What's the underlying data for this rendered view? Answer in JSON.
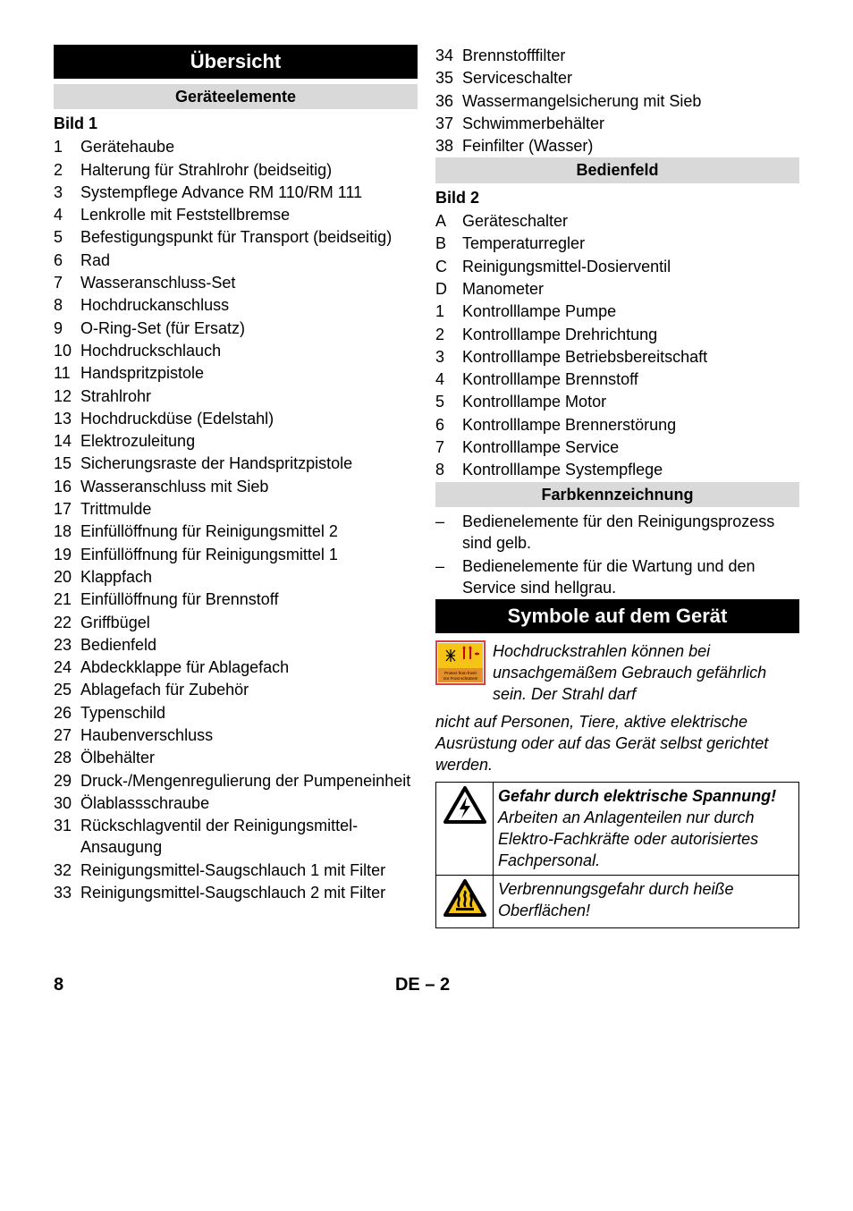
{
  "left": {
    "overview_title": "Übersicht",
    "elements_title": "Geräteelemente",
    "bild_label": "Bild 1",
    "items": [
      {
        "n": "1",
        "t": "Gerätehaube"
      },
      {
        "n": "2",
        "t": "Halterung für Strahlrohr (beidseitig)"
      },
      {
        "n": "3",
        "t": "Systempflege Advance RM 110/RM 111"
      },
      {
        "n": "4",
        "t": "Lenkrolle mit Feststellbremse"
      },
      {
        "n": "5",
        "t": "Befestigungspunkt für Transport (beidseitig)"
      },
      {
        "n": "6",
        "t": "Rad"
      },
      {
        "n": "7",
        "t": "Wasseranschluss-Set"
      },
      {
        "n": "8",
        "t": "Hochdruckanschluss"
      },
      {
        "n": "9",
        "t": "O-Ring-Set (für Ersatz)"
      },
      {
        "n": "10",
        "t": "Hochdruckschlauch"
      },
      {
        "n": "11",
        "t": "Handspritzpistole"
      },
      {
        "n": "12",
        "t": "Strahlrohr"
      },
      {
        "n": "13",
        "t": "Hochdruckdüse (Edelstahl)"
      },
      {
        "n": "14",
        "t": "Elektrozuleitung"
      },
      {
        "n": "15",
        "t": "Sicherungsraste der Handspritzpistole"
      },
      {
        "n": "16",
        "t": "Wasseranschluss mit Sieb"
      },
      {
        "n": "17",
        "t": "Trittmulde"
      },
      {
        "n": "18",
        "t": "Einfüllöffnung für Reinigungsmittel 2"
      },
      {
        "n": "19",
        "t": "Einfüllöffnung für Reinigungsmittel 1"
      },
      {
        "n": "20",
        "t": "Klappfach"
      },
      {
        "n": "21",
        "t": "Einfüllöffnung für Brennstoff"
      },
      {
        "n": "22",
        "t": "Griffbügel"
      },
      {
        "n": "23",
        "t": "Bedienfeld"
      },
      {
        "n": "24",
        "t": "Abdeckklappe für Ablagefach"
      },
      {
        "n": "25",
        "t": "Ablagefach für Zubehör"
      },
      {
        "n": "26",
        "t": "Typenschild"
      },
      {
        "n": "27",
        "t": "Haubenverschluss"
      },
      {
        "n": "28",
        "t": "Ölbehälter"
      },
      {
        "n": "29",
        "t": "Druck-/Mengenregulierung der Pumpeneinheit"
      },
      {
        "n": "30",
        "t": "Ölablassschraube"
      },
      {
        "n": "31",
        "t": "Rückschlagventil der Reinigungsmittel-Ansaugung"
      },
      {
        "n": "32",
        "t": "Reinigungsmittel-Saugschlauch 1 mit Filter"
      },
      {
        "n": "33",
        "t": "Reinigungsmittel-Saugschlauch 2 mit Filter"
      }
    ]
  },
  "right": {
    "top_items": [
      {
        "n": "34",
        "t": "Brennstofffilter"
      },
      {
        "n": "35",
        "t": "Serviceschalter"
      },
      {
        "n": "36",
        "t": "Wassermangelsicherung mit Sieb"
      },
      {
        "n": "37",
        "t": "Schwimmerbehälter"
      },
      {
        "n": "38",
        "t": "Feinfilter (Wasser)"
      }
    ],
    "panel_title": "Bedienfeld",
    "bild2_label": "Bild 2",
    "panel_items": [
      {
        "n": "A",
        "t": "Geräteschalter"
      },
      {
        "n": "B",
        "t": "Temperaturregler"
      },
      {
        "n": "C",
        "t": "Reinigungsmittel-Dosierventil"
      },
      {
        "n": "D",
        "t": "Manometer"
      },
      {
        "n": "1",
        "t": "Kontrolllampe Pumpe"
      },
      {
        "n": "2",
        "t": "Kontrolllampe Drehrichtung"
      },
      {
        "n": "3",
        "t": "Kontrolllampe Betriebsbereitschaft"
      },
      {
        "n": "4",
        "t": "Kontrolllampe Brennstoff"
      },
      {
        "n": "5",
        "t": "Kontrolllampe Motor"
      },
      {
        "n": "6",
        "t": "Kontrolllampe Brennerstörung"
      },
      {
        "n": "7",
        "t": "Kontrolllampe Service"
      },
      {
        "n": "8",
        "t": "Kontrolllampe Systempflege"
      }
    ],
    "color_title": "Farbkennzeichnung",
    "color_items": [
      "Bedienelemente für den Reinigungsprozess sind gelb.",
      "Bedienelemente für die Wartung und den Service sind hellgrau."
    ],
    "symbols_title": "Symbole auf dem Gerät",
    "jet_warn_lead": "Hochdruckstrahlen können bei unsachgemäßem Gebrauch gefährlich sein. Der Strahl darf",
    "jet_warn_cont": "nicht auf Personen, Tiere, aktive elektrische Ausrüstung oder auf das Gerät selbst gerichtet werden.",
    "elec_bold": "Gefahr durch elektrische Spannung!",
    "elec_text": "Arbeiten an Anlagenteilen nur durch Elektro-Fachkräfte oder autorisiertes Fachpersonal.",
    "burn_text": "Verbrennungsgefahr durch heiße Oberflächen!",
    "frost_box_line1": "Protect from frost!",
    "frost_box_line2": "Vor Frost schützen!"
  },
  "footer": {
    "page": "8",
    "lang": "DE – 2"
  },
  "colors": {
    "section_bg": "#000000",
    "section_fg": "#ffffff",
    "subsection_bg": "#d9d9d9",
    "frost_border": "#d94040",
    "frost_top_bg": "#f6c417",
    "frost_bottom_bg": "#e48f2d",
    "triangle_stroke": "#000000",
    "triangle_yellow": "#f6c417"
  }
}
